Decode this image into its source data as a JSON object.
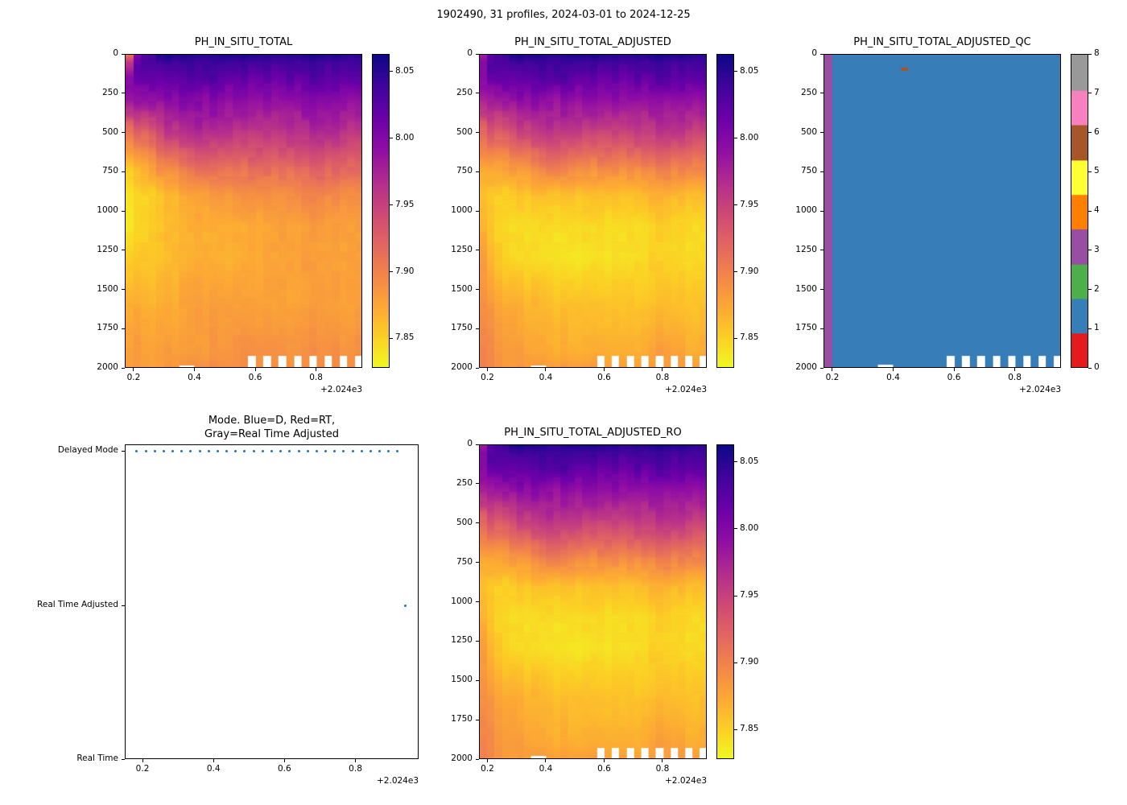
{
  "figure": {
    "title": "1902490, 31 profiles, 2024-03-01 to 2024-12-25",
    "float_id": "1902490",
    "n_profiles": 31,
    "date_start": "2024-03-01",
    "date_end": "2024-12-25"
  },
  "palette": {
    "plasma_stops": [
      "#0d0887",
      "#41049d",
      "#6a00a8",
      "#8f0da4",
      "#b12a90",
      "#cc4778",
      "#e16462",
      "#f2844b",
      "#fca636",
      "#fcce25",
      "#f0f921"
    ],
    "qc_set1_colors": [
      "#e41a1c",
      "#377eb8",
      "#4daf4a",
      "#984ea3",
      "#ff7f00",
      "#ffff33",
      "#a65628",
      "#f781bf",
      "#999999"
    ],
    "mode_dot_blue": "#1f77b4",
    "axis_color": "#000000"
  },
  "profile_times": [
    2024.184,
    2024.209,
    2024.235,
    2024.26,
    2024.285,
    2024.311,
    2024.336,
    2024.361,
    2024.387,
    2024.412,
    2024.437,
    2024.462,
    2024.488,
    2024.513,
    2024.538,
    2024.564,
    2024.589,
    2024.614,
    2024.64,
    2024.665,
    2024.69,
    2024.716,
    2024.741,
    2024.766,
    2024.792,
    2024.817,
    2024.842,
    2024.868,
    2024.893,
    2024.918,
    2024.941
  ],
  "missing_data": {
    "bottom_profiles": [
      16,
      18,
      20,
      22,
      24,
      26,
      28,
      30
    ],
    "bottom_from_depth": 1930,
    "thin_profiles": [
      7,
      8
    ],
    "thin_from_depth": 1985
  },
  "chart_data": [
    {
      "type": "heatmap",
      "title": "PH_IN_SITU_TOTAL",
      "x_tick_labels": [
        "0.2",
        "0.4",
        "0.6",
        "0.8"
      ],
      "x_offset_text": "+2.024e3",
      "x_range": [
        2024.171,
        2024.952
      ],
      "y_tick_labels": [
        "0",
        "250",
        "500",
        "750",
        "1000",
        "1250",
        "1500",
        "1750",
        "2000"
      ],
      "y_range": [
        0,
        2000
      ],
      "y_inverted": true,
      "colorbar": {
        "cmap": "plasma_r",
        "vmin": 7.828,
        "vmax": 8.063,
        "tick_values": [
          8.05,
          8.0,
          7.95,
          7.9,
          7.85
        ],
        "tick_labels": [
          "8.05",
          "8.00",
          "7.95",
          "7.90",
          "7.85"
        ]
      },
      "value_grid": {
        "x": [
          2024.184,
          2024.215,
          2024.3,
          2024.42,
          2024.55,
          2024.68,
          2024.81,
          2024.941
        ],
        "depth": [
          0,
          50,
          150,
          300,
          500,
          700,
          900,
          1100,
          1300,
          1600,
          1900,
          2000
        ],
        "ph": [
          [
            7.91,
            8.02,
            8.06,
            8.05,
            8.06,
            8.05,
            8.06,
            8.05
          ],
          [
            7.96,
            8.03,
            8.04,
            8.04,
            8.04,
            8.04,
            8.04,
            8.04
          ],
          [
            8.0,
            8.02,
            8.02,
            8.03,
            8.02,
            8.02,
            8.03,
            8.02
          ],
          [
            7.98,
            7.99,
            7.99,
            8.0,
            7.99,
            7.99,
            8.0,
            7.99
          ],
          [
            7.91,
            7.92,
            7.95,
            7.97,
            7.96,
            7.96,
            7.97,
            7.96
          ],
          [
            7.86,
            7.87,
            7.9,
            7.92,
            7.92,
            7.92,
            7.93,
            7.92
          ],
          [
            7.84,
            7.845,
            7.86,
            7.88,
            7.89,
            7.89,
            7.9,
            7.89
          ],
          [
            7.84,
            7.845,
            7.86,
            7.87,
            7.87,
            7.88,
            7.88,
            7.88
          ],
          [
            7.85,
            7.855,
            7.86,
            7.87,
            7.87,
            7.88,
            7.88,
            7.88
          ],
          [
            7.87,
            7.87,
            7.87,
            7.88,
            7.88,
            7.88,
            7.88,
            7.88
          ],
          [
            7.88,
            7.88,
            7.88,
            7.88,
            7.89,
            7.89,
            7.89,
            7.89
          ],
          [
            7.88,
            7.88,
            7.88,
            7.89,
            7.89,
            7.89,
            7.89,
            7.89
          ]
        ]
      }
    },
    {
      "type": "heatmap",
      "title": "PH_IN_SITU_TOTAL_ADJUSTED",
      "x_tick_labels": [
        "0.2",
        "0.4",
        "0.6",
        "0.8"
      ],
      "x_offset_text": "+2.024e3",
      "x_range": [
        2024.171,
        2024.952
      ],
      "y_tick_labels": [
        "0",
        "250",
        "500",
        "750",
        "1000",
        "1250",
        "1500",
        "1750",
        "2000"
      ],
      "y_range": [
        0,
        2000
      ],
      "y_inverted": true,
      "colorbar": {
        "cmap": "plasma_r",
        "vmin": 7.828,
        "vmax": 8.063,
        "tick_values": [
          8.05,
          8.0,
          7.95,
          7.9,
          7.85
        ],
        "tick_labels": [
          "8.05",
          "8.00",
          "7.95",
          "7.90",
          "7.85"
        ]
      },
      "value_grid": {
        "x": [
          2024.184,
          2024.215,
          2024.3,
          2024.42,
          2024.55,
          2024.68,
          2024.81,
          2024.941
        ],
        "depth": [
          0,
          50,
          150,
          300,
          500,
          700,
          900,
          1100,
          1300,
          1600,
          1900,
          2000
        ],
        "ph": [
          [
            7.98,
            8.03,
            8.06,
            8.05,
            8.06,
            8.05,
            8.06,
            8.05
          ],
          [
            8.0,
            8.03,
            8.04,
            8.04,
            8.04,
            8.04,
            8.04,
            8.04
          ],
          [
            8.0,
            8.02,
            8.02,
            8.03,
            8.02,
            8.02,
            8.03,
            8.02
          ],
          [
            7.97,
            7.98,
            7.99,
            7.99,
            7.99,
            7.99,
            7.99,
            7.99
          ],
          [
            7.92,
            7.93,
            7.94,
            7.96,
            7.95,
            7.95,
            7.96,
            7.95
          ],
          [
            7.88,
            7.88,
            7.89,
            7.91,
            7.9,
            7.9,
            7.91,
            7.9
          ],
          [
            7.86,
            7.85,
            7.855,
            7.86,
            7.86,
            7.86,
            7.87,
            7.86
          ],
          [
            7.87,
            7.85,
            7.842,
            7.843,
            7.845,
            7.845,
            7.85,
            7.845
          ],
          [
            7.88,
            7.86,
            7.845,
            7.84,
            7.84,
            7.845,
            7.85,
            7.845
          ],
          [
            7.89,
            7.88,
            7.87,
            7.86,
            7.86,
            7.86,
            7.86,
            7.86
          ],
          [
            7.9,
            7.89,
            7.88,
            7.87,
            7.87,
            7.87,
            7.88,
            7.87
          ],
          [
            7.9,
            7.89,
            7.88,
            7.88,
            7.88,
            7.88,
            7.88,
            7.88
          ]
        ]
      }
    },
    {
      "type": "heatmap_categorical",
      "title": "PH_IN_SITU_TOTAL_ADJUSTED_QC",
      "x_tick_labels": [
        "0.2",
        "0.4",
        "0.6",
        "0.8"
      ],
      "x_offset_text": "+2.024e3",
      "x_range": [
        2024.171,
        2024.952
      ],
      "y_tick_labels": [
        "0",
        "250",
        "500",
        "750",
        "1000",
        "1250",
        "1500",
        "1750",
        "2000"
      ],
      "y_range": [
        0,
        2000
      ],
      "y_inverted": true,
      "colorbar": {
        "cmap": "Set1",
        "num_colors": 9,
        "tick_values": [
          0,
          1,
          2,
          3,
          4,
          5,
          6,
          7,
          8
        ],
        "tick_labels": [
          "0",
          "1",
          "2",
          "3",
          "4",
          "5",
          "6",
          "7",
          "8"
        ]
      },
      "qc_grid": {
        "per_profile": [
          3,
          1,
          1,
          1,
          1,
          1,
          1,
          1,
          1,
          1,
          1,
          1,
          1,
          1,
          1,
          1,
          1,
          1,
          1,
          1,
          1,
          1,
          1,
          1,
          1,
          1,
          1,
          1,
          1,
          1,
          1
        ],
        "anomalies": [
          {
            "profile": 10,
            "depth_top": 80,
            "depth_bottom": 105,
            "value": 6
          }
        ]
      }
    },
    {
      "type": "scatter",
      "title_lines": [
        "Mode. Blue=D, Red=RT,",
        "Gray=Real Time Adjusted"
      ],
      "x_tick_labels": [
        "0.2",
        "0.4",
        "0.6",
        "0.8"
      ],
      "x_offset_text": "+2.024e3",
      "x_range": [
        2024.15,
        2024.978
      ],
      "categories": [
        "Delayed Mode",
        "Real Time Adjusted",
        "Real Time"
      ],
      "series": [
        {
          "category": "Delayed Mode",
          "x": [
            2024.184,
            2024.209,
            2024.235,
            2024.26,
            2024.285,
            2024.311,
            2024.336,
            2024.361,
            2024.387,
            2024.412,
            2024.437,
            2024.462,
            2024.488,
            2024.513,
            2024.538,
            2024.564,
            2024.589,
            2024.614,
            2024.64,
            2024.665,
            2024.69,
            2024.716,
            2024.741,
            2024.766,
            2024.792,
            2024.817,
            2024.842,
            2024.868,
            2024.893,
            2024.918
          ]
        },
        {
          "category": "Real Time Adjusted",
          "x": [
            2024.941
          ]
        },
        {
          "category": "Real Time",
          "x": []
        }
      ]
    },
    {
      "type": "heatmap",
      "title": "PH_IN_SITU_TOTAL_ADJUSTED_RO",
      "x_tick_labels": [
        "0.2",
        "0.4",
        "0.6",
        "0.8"
      ],
      "x_offset_text": "+2.024e3",
      "x_range": [
        2024.171,
        2024.952
      ],
      "y_tick_labels": [
        "0",
        "250",
        "500",
        "750",
        "1000",
        "1250",
        "1500",
        "1750",
        "2000"
      ],
      "y_range": [
        0,
        2000
      ],
      "y_inverted": true,
      "colorbar": {
        "cmap": "plasma_r",
        "vmin": 7.828,
        "vmax": 8.063,
        "tick_values": [
          8.05,
          8.0,
          7.95,
          7.9,
          7.85
        ],
        "tick_labels": [
          "8.05",
          "8.00",
          "7.95",
          "7.90",
          "7.85"
        ]
      },
      "value_grid": {
        "x": [
          2024.184,
          2024.215,
          2024.3,
          2024.42,
          2024.55,
          2024.68,
          2024.81,
          2024.941
        ],
        "depth": [
          0,
          50,
          150,
          300,
          500,
          700,
          900,
          1100,
          1300,
          1600,
          1900,
          2000
        ],
        "ph": [
          [
            7.98,
            8.03,
            8.06,
            8.05,
            8.06,
            8.05,
            8.06,
            8.05
          ],
          [
            8.0,
            8.03,
            8.04,
            8.04,
            8.04,
            8.04,
            8.04,
            8.04
          ],
          [
            8.0,
            8.02,
            8.02,
            8.03,
            8.02,
            8.02,
            8.03,
            8.02
          ],
          [
            7.97,
            7.98,
            7.99,
            7.99,
            7.99,
            7.99,
            7.99,
            7.99
          ],
          [
            7.92,
            7.93,
            7.94,
            7.96,
            7.95,
            7.95,
            7.96,
            7.95
          ],
          [
            7.88,
            7.88,
            7.89,
            7.91,
            7.9,
            7.9,
            7.91,
            7.9
          ],
          [
            7.86,
            7.85,
            7.855,
            7.86,
            7.86,
            7.86,
            7.87,
            7.86
          ],
          [
            7.87,
            7.85,
            7.842,
            7.843,
            7.845,
            7.845,
            7.85,
            7.845
          ],
          [
            7.88,
            7.86,
            7.845,
            7.84,
            7.84,
            7.845,
            7.85,
            7.845
          ],
          [
            7.89,
            7.88,
            7.87,
            7.86,
            7.86,
            7.86,
            7.86,
            7.86
          ],
          [
            7.9,
            7.89,
            7.88,
            7.87,
            7.87,
            7.87,
            7.88,
            7.87
          ],
          [
            7.9,
            7.89,
            7.88,
            7.88,
            7.88,
            7.88,
            7.88,
            7.88
          ]
        ]
      }
    }
  ]
}
